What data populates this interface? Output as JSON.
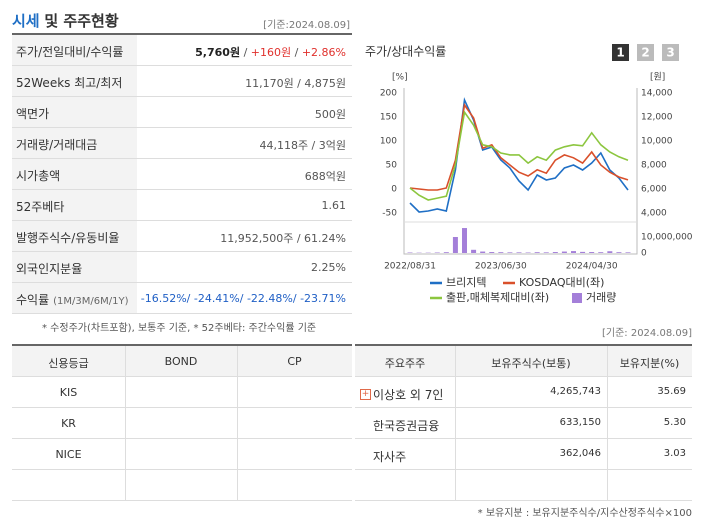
{
  "header": {
    "title_highlight": "시세",
    "title": "및 주주현황",
    "date": "[기준:2024.08.09]"
  },
  "summary": {
    "rows": [
      {
        "label": "주가/전일대비/수익률",
        "parts": [
          {
            "text": "5,760원",
            "style": "bold"
          },
          {
            "text": " / "
          },
          {
            "text": "+160원",
            "style": "up"
          },
          {
            "text": " / "
          },
          {
            "text": "+2.86%",
            "style": "up"
          }
        ]
      },
      {
        "label": "52Weeks 최고/최저",
        "parts": [
          {
            "text": "11,170원 / 4,875원"
          }
        ]
      },
      {
        "label": "액면가",
        "parts": [
          {
            "text": "500원"
          }
        ]
      },
      {
        "label": "거래량/거래대금",
        "parts": [
          {
            "text": "44,118주 / 3억원"
          }
        ]
      },
      {
        "label": "시가총액",
        "parts": [
          {
            "text": "688억원"
          }
        ]
      },
      {
        "label": "52주베타",
        "parts": [
          {
            "text": "1.61"
          }
        ]
      },
      {
        "label": "발행주식수/유동비율",
        "parts": [
          {
            "text": "11,952,500주 / 61.24%"
          }
        ]
      },
      {
        "label": "외국인지분율",
        "parts": [
          {
            "text": "2.25%"
          }
        ]
      },
      {
        "label": "수익률",
        "sublabel": "(1M/3M/6M/1Y)",
        "parts": [
          {
            "text": "-16.52%/ -24.41%/ -22.48%/ -23.71%",
            "style": "down"
          }
        ]
      }
    ],
    "note": "* 수정주가(차트포함), 보통주 기준, * 52주베타: 주간수익률 기준"
  },
  "chart": {
    "type": "line",
    "title": "주가/상대수익률",
    "tabs": [
      "1",
      "2",
      "3"
    ],
    "active_tab": 0,
    "y_unit": "[%]",
    "y2_unit": "[원]",
    "x": [
      0,
      1,
      2,
      3,
      4,
      5,
      6,
      7,
      8,
      9,
      10,
      11,
      12,
      13,
      14,
      15,
      16,
      17,
      18,
      19,
      20,
      21,
      22,
      23,
      24
    ],
    "xlim": [
      0,
      24
    ],
    "xticks": [
      {
        "value": 0,
        "label": "2022/08/31"
      },
      {
        "value": 10,
        "label": "2023/06/30"
      },
      {
        "value": 20,
        "label": "2024/04/30"
      }
    ],
    "ylim": [
      -50,
      200
    ],
    "yticks": [
      -50,
      0,
      50,
      100,
      150,
      200
    ],
    "y2lim": [
      4000,
      14000
    ],
    "y2ticks": [
      {
        "value": 4000,
        "label": "4,000"
      },
      {
        "value": 6000,
        "label": "6,000"
      },
      {
        "value": 8000,
        "label": "8,000"
      },
      {
        "value": 10000,
        "label": "10,000"
      },
      {
        "value": 12000,
        "label": "12,000"
      },
      {
        "value": 14000,
        "label": "14,000"
      }
    ],
    "y3lim": [
      0,
      10000000
    ],
    "y3ticks": [
      0,
      {
        "value": 10000000,
        "label": "10,000,000"
      }
    ],
    "series": [
      {
        "name": "브리지텍",
        "color": "#1f6fc5",
        "axis": "y2",
        "values": [
          4830,
          4080,
          4170,
          4330,
          4170,
          7580,
          13420,
          11750,
          9250,
          9500,
          8420,
          7750,
          6670,
          5920,
          7170,
          6750,
          6920,
          7750,
          8000,
          7580,
          8170,
          9000,
          7580,
          6920,
          5920
        ]
      },
      {
        "name": "KOSDAQ대비(좌)",
        "color": "#d9502b",
        "values": [
          2,
          0,
          -2,
          -2,
          2,
          60,
          175,
          148,
          85,
          92,
          65,
          50,
          35,
          27,
          40,
          33,
          60,
          71,
          65,
          54,
          77,
          50,
          35,
          25,
          19
        ]
      },
      {
        "name": "출판,매체복제대비(좌)",
        "color": "#8cc63f",
        "values": [
          2,
          -13,
          -23,
          -19,
          -15,
          50,
          160,
          133,
          92,
          88,
          75,
          71,
          71,
          54,
          67,
          60,
          81,
          88,
          92,
          90,
          117,
          92,
          77,
          67,
          60
        ]
      },
      {
        "name": "거래량",
        "color": "#a47fd9",
        "type": "bar",
        "axis": "y3",
        "values": [
          300000,
          200000,
          200000,
          300000,
          500000,
          10000000,
          15600000,
          2000000,
          900000,
          600000,
          500000,
          400000,
          400000,
          300000,
          500000,
          400000,
          600000,
          900000,
          1200000,
          700000,
          600000,
          500000,
          1100000,
          500000,
          400000
        ]
      }
    ]
  },
  "credit": {
    "columns": [
      "신용등급",
      "BOND",
      "CP"
    ],
    "rows": [
      [
        "KIS"
      ],
      [
        "KR"
      ],
      [
        "NICE"
      ]
    ]
  },
  "holders": {
    "date": "[기준: 2024.08.09]",
    "columns": [
      "주요주주",
      "보유주식수(보통)",
      "보유지분(%)"
    ],
    "rows": [
      [
        "이상호 외 7인",
        "4,265,743",
        "35.69"
      ],
      [
        "한국증권금융",
        "633,150",
        "5.30"
      ],
      [
        "자사주",
        "362,046",
        "3.03"
      ]
    ],
    "note": "* 보유지분 : 보유지분주식수/지수산정주식수×100"
  }
}
